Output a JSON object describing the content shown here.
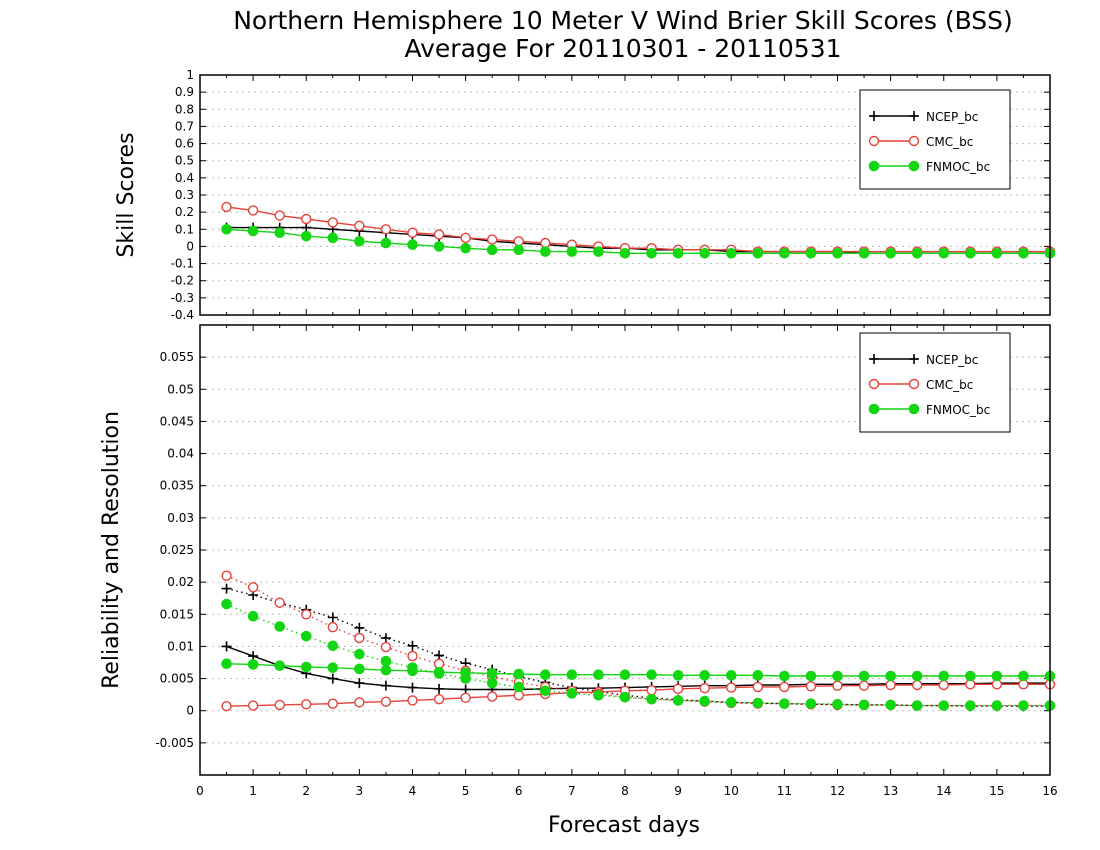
{
  "title_line1": "Northern Hemisphere 10 Meter V Wind Brier Skill Scores (BSS)",
  "title_line2": "Average For 20110301 - 20110531",
  "xlabel": "Forecast days",
  "colors": {
    "NCEP_bc": "#000000",
    "CMC_bc": "#e8403a",
    "FNMOC_bc": "#12d612"
  },
  "chart_data": [
    {
      "type": "line",
      "ylabel": "Skill Scores",
      "xlim": [
        0,
        16
      ],
      "ylim": [
        -0.4,
        1
      ],
      "x_ticks": [
        "0",
        "1",
        "2",
        "3",
        "4",
        "5",
        "6",
        "7",
        "8",
        "9",
        "10",
        "11",
        "12",
        "13",
        "14",
        "15",
        "16"
      ],
      "y_ticks": [
        "1",
        "0.9",
        "0.8",
        "0.7",
        "0.6",
        "0.5",
        "0.4",
        "0.3",
        "0.2",
        "0.1",
        "0",
        "-0.1",
        "-0.2",
        "-0.3",
        "-0.4"
      ],
      "legend": "top-right",
      "x": [
        0.5,
        1,
        1.5,
        2,
        2.5,
        3,
        3.5,
        4,
        4.5,
        5,
        5.5,
        6,
        6.5,
        7,
        7.5,
        8,
        8.5,
        9,
        9.5,
        10,
        10.5,
        11,
        11.5,
        12,
        12.5,
        13,
        13.5,
        14,
        14.5,
        15,
        15.5,
        16
      ],
      "series": [
        {
          "name": "NCEP_bc",
          "marker": "plus",
          "line": "solid",
          "values": [
            0.11,
            0.11,
            0.11,
            0.11,
            0.1,
            0.09,
            0.08,
            0.07,
            0.06,
            0.05,
            0.03,
            0.02,
            0.01,
            0.0,
            -0.01,
            -0.01,
            -0.02,
            -0.02,
            -0.02,
            -0.03,
            -0.03,
            -0.03,
            -0.03,
            -0.03,
            -0.04,
            -0.04,
            -0.04,
            -0.04,
            -0.04,
            -0.04,
            -0.04,
            -0.04
          ]
        },
        {
          "name": "CMC_bc",
          "marker": "open-circle",
          "line": "solid",
          "values": [
            0.23,
            0.21,
            0.18,
            0.16,
            0.14,
            0.12,
            0.1,
            0.08,
            0.07,
            0.05,
            0.04,
            0.03,
            0.02,
            0.01,
            0.0,
            -0.01,
            -0.01,
            -0.02,
            -0.02,
            -0.02,
            -0.03,
            -0.03,
            -0.03,
            -0.03,
            -0.03,
            -0.03,
            -0.03,
            -0.03,
            -0.03,
            -0.03,
            -0.03,
            -0.03
          ]
        },
        {
          "name": "FNMOC_bc",
          "marker": "filled-circle",
          "line": "solid",
          "values": [
            0.1,
            0.09,
            0.08,
            0.06,
            0.05,
            0.03,
            0.02,
            0.01,
            0.0,
            -0.01,
            -0.02,
            -0.02,
            -0.03,
            -0.03,
            -0.03,
            -0.04,
            -0.04,
            -0.04,
            -0.04,
            -0.04,
            -0.04,
            -0.04,
            -0.04,
            -0.04,
            -0.04,
            -0.04,
            -0.04,
            -0.04,
            -0.04,
            -0.04,
            -0.04,
            -0.04
          ]
        }
      ]
    },
    {
      "type": "line",
      "ylabel": "Reliability and Resolution",
      "xlim": [
        0,
        16
      ],
      "ylim": [
        -0.01,
        0.06
      ],
      "x_ticks": [
        "0",
        "1",
        "2",
        "3",
        "4",
        "5",
        "6",
        "7",
        "8",
        "9",
        "10",
        "11",
        "12",
        "13",
        "14",
        "15",
        "16"
      ],
      "y_ticks": [
        "0.055",
        "0.05",
        "0.045",
        "0.04",
        "0.035",
        "0.03",
        "0.025",
        "0.02",
        "0.015",
        "0.01",
        "0.005",
        "0",
        "-0.005"
      ],
      "legend": "top-right",
      "x": [
        0.5,
        1,
        1.5,
        2,
        2.5,
        3,
        3.5,
        4,
        4.5,
        5,
        5.5,
        6,
        6.5,
        7,
        7.5,
        8,
        8.5,
        9,
        9.5,
        10,
        10.5,
        11,
        11.5,
        12,
        12.5,
        13,
        13.5,
        14,
        14.5,
        15,
        15.5,
        16
      ],
      "series": [
        {
          "name": "NCEP_bc",
          "marker": "plus",
          "line": "solid",
          "values": [
            0.01,
            0.0085,
            0.007,
            0.0058,
            0.005,
            0.0043,
            0.0039,
            0.0036,
            0.0034,
            0.0033,
            0.0033,
            0.0033,
            0.0034,
            0.0035,
            0.0035,
            0.0036,
            0.0037,
            0.0038,
            0.0039,
            0.0039,
            0.004,
            0.004,
            0.0041,
            0.0041,
            0.0041,
            0.0042,
            0.0042,
            0.0042,
            0.0042,
            0.0043,
            0.0043,
            0.0043
          ]
        },
        {
          "name": "NCEP_bc",
          "marker": "plus",
          "line": "dotted",
          "values": [
            0.019,
            0.018,
            0.0168,
            0.0157,
            0.0145,
            0.0129,
            0.0113,
            0.0101,
            0.0086,
            0.0074,
            0.0064,
            0.0053,
            0.0044,
            0.0036,
            0.003,
            0.0024,
            0.002,
            0.0017,
            0.0015,
            0.0013,
            0.0012,
            0.0011,
            0.001,
            0.001,
            0.0009,
            0.0009,
            0.0008,
            0.0008,
            0.0007,
            0.0007,
            0.0007,
            0.0007
          ]
        },
        {
          "name": "CMC_bc",
          "marker": "open-circle",
          "line": "solid",
          "values": [
            0.0007,
            0.0008,
            0.0009,
            0.001,
            0.0011,
            0.0013,
            0.0014,
            0.0016,
            0.0018,
            0.002,
            0.0022,
            0.0024,
            0.0026,
            0.0028,
            0.0029,
            0.0031,
            0.0032,
            0.0034,
            0.0035,
            0.0036,
            0.0037,
            0.0037,
            0.0038,
            0.0039,
            0.0039,
            0.004,
            0.004,
            0.004,
            0.0041,
            0.0041,
            0.0041,
            0.0041
          ]
        },
        {
          "name": "CMC_bc",
          "marker": "open-circle",
          "line": "dotted",
          "values": [
            0.021,
            0.0192,
            0.0168,
            0.015,
            0.013,
            0.0113,
            0.0099,
            0.0085,
            0.0073,
            0.0062,
            0.0053,
            0.0044,
            0.0037,
            0.0031,
            0.0026,
            0.0021,
            0.0018,
            0.0016,
            0.0014,
            0.0012,
            0.0011,
            0.0011,
            0.001,
            0.0009,
            0.0009,
            0.0009,
            0.0008,
            0.0008,
            0.0008,
            0.0008,
            0.0008,
            0.0008
          ]
        },
        {
          "name": "FNMOC_bc",
          "marker": "filled-circle",
          "line": "solid",
          "values": [
            0.0073,
            0.0072,
            0.007,
            0.0068,
            0.0067,
            0.0065,
            0.0063,
            0.0062,
            0.006,
            0.0059,
            0.0058,
            0.0057,
            0.0056,
            0.0056,
            0.0056,
            0.0056,
            0.0056,
            0.0055,
            0.0055,
            0.0055,
            0.0055,
            0.0054,
            0.0054,
            0.0054,
            0.0054,
            0.0054,
            0.0054,
            0.0054,
            0.0054,
            0.0054,
            0.0054,
            0.0054
          ]
        },
        {
          "name": "FNMOC_bc",
          "marker": "filled-circle",
          "line": "dotted",
          "values": [
            0.0166,
            0.0147,
            0.0131,
            0.0116,
            0.0101,
            0.0088,
            0.0077,
            0.0067,
            0.0058,
            0.005,
            0.0043,
            0.0037,
            0.0031,
            0.0027,
            0.0024,
            0.0021,
            0.0018,
            0.0016,
            0.0015,
            0.0013,
            0.0012,
            0.0011,
            0.0011,
            0.001,
            0.0009,
            0.0009,
            0.0008,
            0.0008,
            0.0008,
            0.0008,
            0.0008,
            0.0008
          ]
        }
      ]
    }
  ]
}
